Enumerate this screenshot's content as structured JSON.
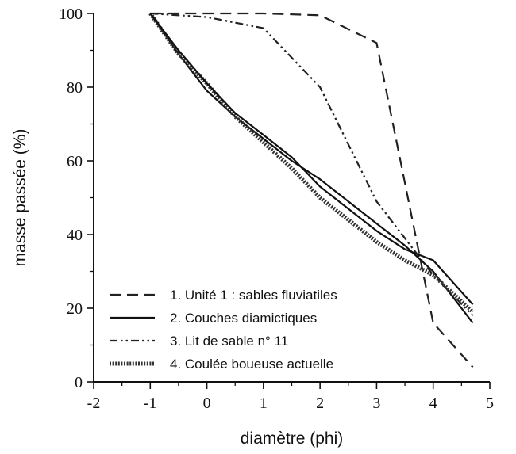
{
  "chart_data": {
    "type": "line",
    "title": "",
    "xlabel": "diamètre (phi)",
    "ylabel": "masse passée (%)",
    "xlim": [
      -2,
      5
    ],
    "ylim": [
      0,
      100
    ],
    "x_ticks": [
      -2,
      -1,
      0,
      1,
      2,
      3,
      4,
      5
    ],
    "y_ticks": [
      0,
      20,
      40,
      60,
      80,
      100
    ],
    "grid": false,
    "legend_position": "bottom-left",
    "series": [
      {
        "name": "1. Unité 1 : sables fluviatiles",
        "style": "dashed",
        "x": [
          -1,
          0,
          1,
          2,
          3,
          4,
          4.7
        ],
        "y": [
          100,
          100,
          100,
          99.5,
          92,
          16,
          4
        ]
      },
      {
        "name": "2. Couches diamictiques",
        "style": "solid",
        "x": [
          -1,
          -0.5,
          0,
          0.5,
          1,
          1.5,
          2,
          2.5,
          3,
          3.5,
          4,
          4.7
        ],
        "y": [
          100,
          89,
          79,
          72,
          66,
          60,
          55,
          49,
          43,
          37,
          30,
          16
        ]
      },
      {
        "name": "3. Lit de sable n° 11",
        "style": "dash-dot-dot",
        "x": [
          -1,
          0,
          1,
          2,
          3,
          4,
          4.7
        ],
        "y": [
          100,
          99,
          96,
          80,
          49,
          29,
          18
        ]
      },
      {
        "name": "4. Coulée boueuse actuelle",
        "style": "dotted-thick",
        "x": [
          -1,
          -0.5,
          0,
          0.5,
          1,
          1.5,
          2,
          2.5,
          3,
          3.5,
          4,
          4.7
        ],
        "y": [
          100,
          89,
          81,
          72,
          65,
          58,
          50,
          44,
          38,
          33,
          29,
          19
        ]
      },
      {
        "name": "",
        "style": "solid",
        "x": [
          -1,
          -0.5,
          0,
          0.5,
          1,
          1.5,
          2,
          2.5,
          3,
          3.5,
          4,
          4.7
        ],
        "y": [
          100,
          90,
          81,
          73,
          67,
          61,
          53,
          47,
          41,
          36,
          33,
          21
        ]
      }
    ]
  }
}
